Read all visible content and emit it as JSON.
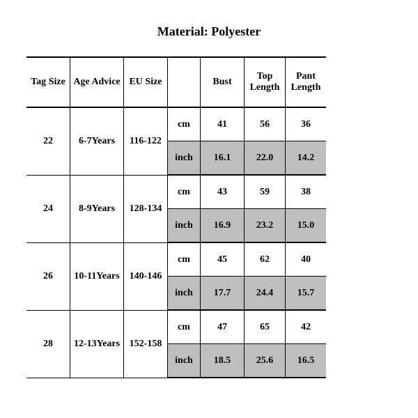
{
  "title": "Material: Polyester",
  "headers": {
    "tag": "Tag Size",
    "age": "Age Advice",
    "eu": "EU Size",
    "unit": "",
    "bust": "Bust",
    "top": "Top Length",
    "pant": "Pant Length"
  },
  "units": {
    "cm": "cm",
    "inch": "inch"
  },
  "rows": [
    {
      "tag": "22",
      "age": "6-7Years",
      "eu": "116-122",
      "cm": {
        "bust": "41",
        "top": "56",
        "pant": "36"
      },
      "inch": {
        "bust": "16.1",
        "top": "22.0",
        "pant": "14.2"
      }
    },
    {
      "tag": "24",
      "age": "8-9Years",
      "eu": "128-134",
      "cm": {
        "bust": "43",
        "top": "59",
        "pant": "38"
      },
      "inch": {
        "bust": "16.9",
        "top": "23.2",
        "pant": "15.0"
      }
    },
    {
      "tag": "26",
      "age": "10-11Years",
      "eu": "140-146",
      "cm": {
        "bust": "45",
        "top": "62",
        "pant": "40"
      },
      "inch": {
        "bust": "17.7",
        "top": "24.4",
        "pant": "15.7"
      }
    },
    {
      "tag": "28",
      "age": "12-13Years",
      "eu": "152-158",
      "cm": {
        "bust": "47",
        "top": "65",
        "pant": "42"
      },
      "inch": {
        "bust": "18.5",
        "top": "25.6",
        "pant": "16.5"
      }
    }
  ],
  "style": {
    "background_color": "#ffffff",
    "shade_color": "#bfbfbf",
    "border_color": "#000000",
    "title_fontsize": 18,
    "cell_fontsize": 14,
    "font_family": "Times New Roman"
  }
}
